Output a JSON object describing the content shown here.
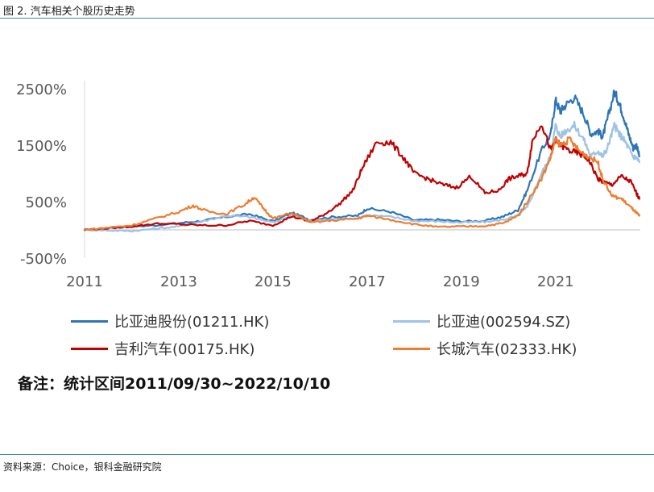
{
  "figure_title": "图 2. 汽车相关个股历史走势",
  "note": "备注：统计区间2011/09/30~2022/10/10",
  "source": "资料来源：Choice，银科金融研究院",
  "chart_data": {
    "type": "line",
    "ylim": [
      -500,
      2500
    ],
    "yticks": [
      2500,
      1500,
      500,
      -500
    ],
    "ytick_labels": [
      "2500%",
      "1500%",
      "500%",
      "-500%"
    ],
    "xlim": [
      2011,
      2022.8
    ],
    "xticks": [
      2011,
      2013,
      2015,
      2017,
      2019,
      2021
    ],
    "xtick_labels": [
      "2011",
      "2013",
      "2015",
      "2017",
      "2019",
      "2021"
    ],
    "legend_position": "bottom",
    "series": [
      {
        "name": "比亚迪股份(01211.HK)",
        "color": "#2e75b6",
        "x": [
          2011.0,
          2011.5,
          2012.0,
          2012.5,
          2013.0,
          2013.5,
          2014.0,
          2014.5,
          2015.0,
          2015.4,
          2015.8,
          2016.3,
          2016.8,
          2017.0,
          2017.5,
          2018.0,
          2018.5,
          2019.0,
          2019.5,
          2019.9,
          2020.2,
          2020.4,
          2020.7,
          2020.9,
          2021.0,
          2021.1,
          2021.2,
          2021.4,
          2021.6,
          2021.75,
          2021.9,
          2022.0,
          2022.1,
          2022.25,
          2022.35,
          2022.45,
          2022.55,
          2022.65,
          2022.72,
          2022.78
        ],
        "y": [
          0,
          30,
          60,
          80,
          120,
          160,
          230,
          280,
          150,
          300,
          180,
          230,
          250,
          380,
          320,
          170,
          180,
          150,
          160,
          240,
          350,
          700,
          1400,
          1700,
          2300,
          2100,
          2200,
          2350,
          2050,
          1700,
          1750,
          1650,
          1950,
          2450,
          2250,
          2000,
          1700,
          1450,
          1500,
          1300
        ]
      },
      {
        "name": "比亚迪(002594.SZ)",
        "color": "#9dc3e6",
        "x": [
          2011.0,
          2011.5,
          2012.0,
          2012.5,
          2013.0,
          2013.5,
          2014.0,
          2014.5,
          2015.0,
          2015.4,
          2015.8,
          2016.3,
          2016.8,
          2017.0,
          2017.5,
          2018.0,
          2018.5,
          2019.0,
          2019.5,
          2019.9,
          2020.2,
          2020.4,
          2020.7,
          2020.9,
          2021.0,
          2021.1,
          2021.2,
          2021.4,
          2021.6,
          2021.75,
          2021.9,
          2022.0,
          2022.1,
          2022.25,
          2022.35,
          2022.45,
          2022.55,
          2022.65,
          2022.72,
          2022.78
        ],
        "y": [
          0,
          -10,
          -20,
          20,
          60,
          150,
          250,
          230,
          130,
          250,
          160,
          190,
          210,
          260,
          230,
          160,
          150,
          130,
          140,
          180,
          250,
          400,
          1000,
          1300,
          1850,
          1650,
          1750,
          1850,
          1600,
          1300,
          1400,
          1300,
          1450,
          1850,
          1700,
          1600,
          1450,
          1300,
          1280,
          1200
        ]
      },
      {
        "name": "吉利汽车(00175.HK)",
        "color": "#c00000",
        "x": [
          2011.0,
          2011.5,
          2012.0,
          2012.5,
          2013.0,
          2013.5,
          2014.0,
          2014.5,
          2015.0,
          2015.4,
          2015.8,
          2016.1,
          2016.4,
          2016.7,
          2016.9,
          2017.2,
          2017.5,
          2017.8,
          2018.0,
          2018.3,
          2018.6,
          2018.9,
          2019.2,
          2019.5,
          2019.8,
          2020.0,
          2020.2,
          2020.4,
          2020.5,
          2020.7,
          2020.9,
          2021.0,
          2021.1,
          2021.3,
          2021.5,
          2021.7,
          2021.9,
          2022.0,
          2022.2,
          2022.4,
          2022.6,
          2022.72,
          2022.78
        ],
        "y": [
          0,
          30,
          60,
          110,
          100,
          80,
          80,
          160,
          80,
          240,
          140,
          280,
          450,
          700,
          1100,
          1550,
          1550,
          1250,
          1000,
          900,
          800,
          750,
          950,
          650,
          700,
          900,
          950,
          1000,
          1550,
          1900,
          1400,
          1600,
          1500,
          1400,
          1350,
          1250,
          900,
          850,
          800,
          950,
          850,
          650,
          550
        ]
      },
      {
        "name": "长城汽车(02333.HK)",
        "color": "#ed7d31",
        "x": [
          2011.0,
          2011.5,
          2012.0,
          2012.5,
          2013.0,
          2013.3,
          2013.6,
          2014.0,
          2014.4,
          2014.6,
          2014.8,
          2015.0,
          2015.4,
          2015.8,
          2016.3,
          2016.8,
          2017.0,
          2017.5,
          2018.0,
          2018.5,
          2019.0,
          2019.5,
          2019.9,
          2020.2,
          2020.4,
          2020.7,
          2020.9,
          2021.0,
          2021.1,
          2021.3,
          2021.5,
          2021.7,
          2021.9,
          2022.0,
          2022.2,
          2022.4,
          2022.6,
          2022.72,
          2022.78
        ],
        "y": [
          0,
          40,
          80,
          200,
          320,
          430,
          330,
          280,
          450,
          580,
          380,
          200,
          300,
          130,
          170,
          200,
          250,
          180,
          100,
          50,
          60,
          70,
          120,
          250,
          500,
          900,
          1300,
          1600,
          1500,
          1600,
          1400,
          1300,
          1200,
          900,
          600,
          550,
          400,
          300,
          250
        ]
      }
    ]
  }
}
